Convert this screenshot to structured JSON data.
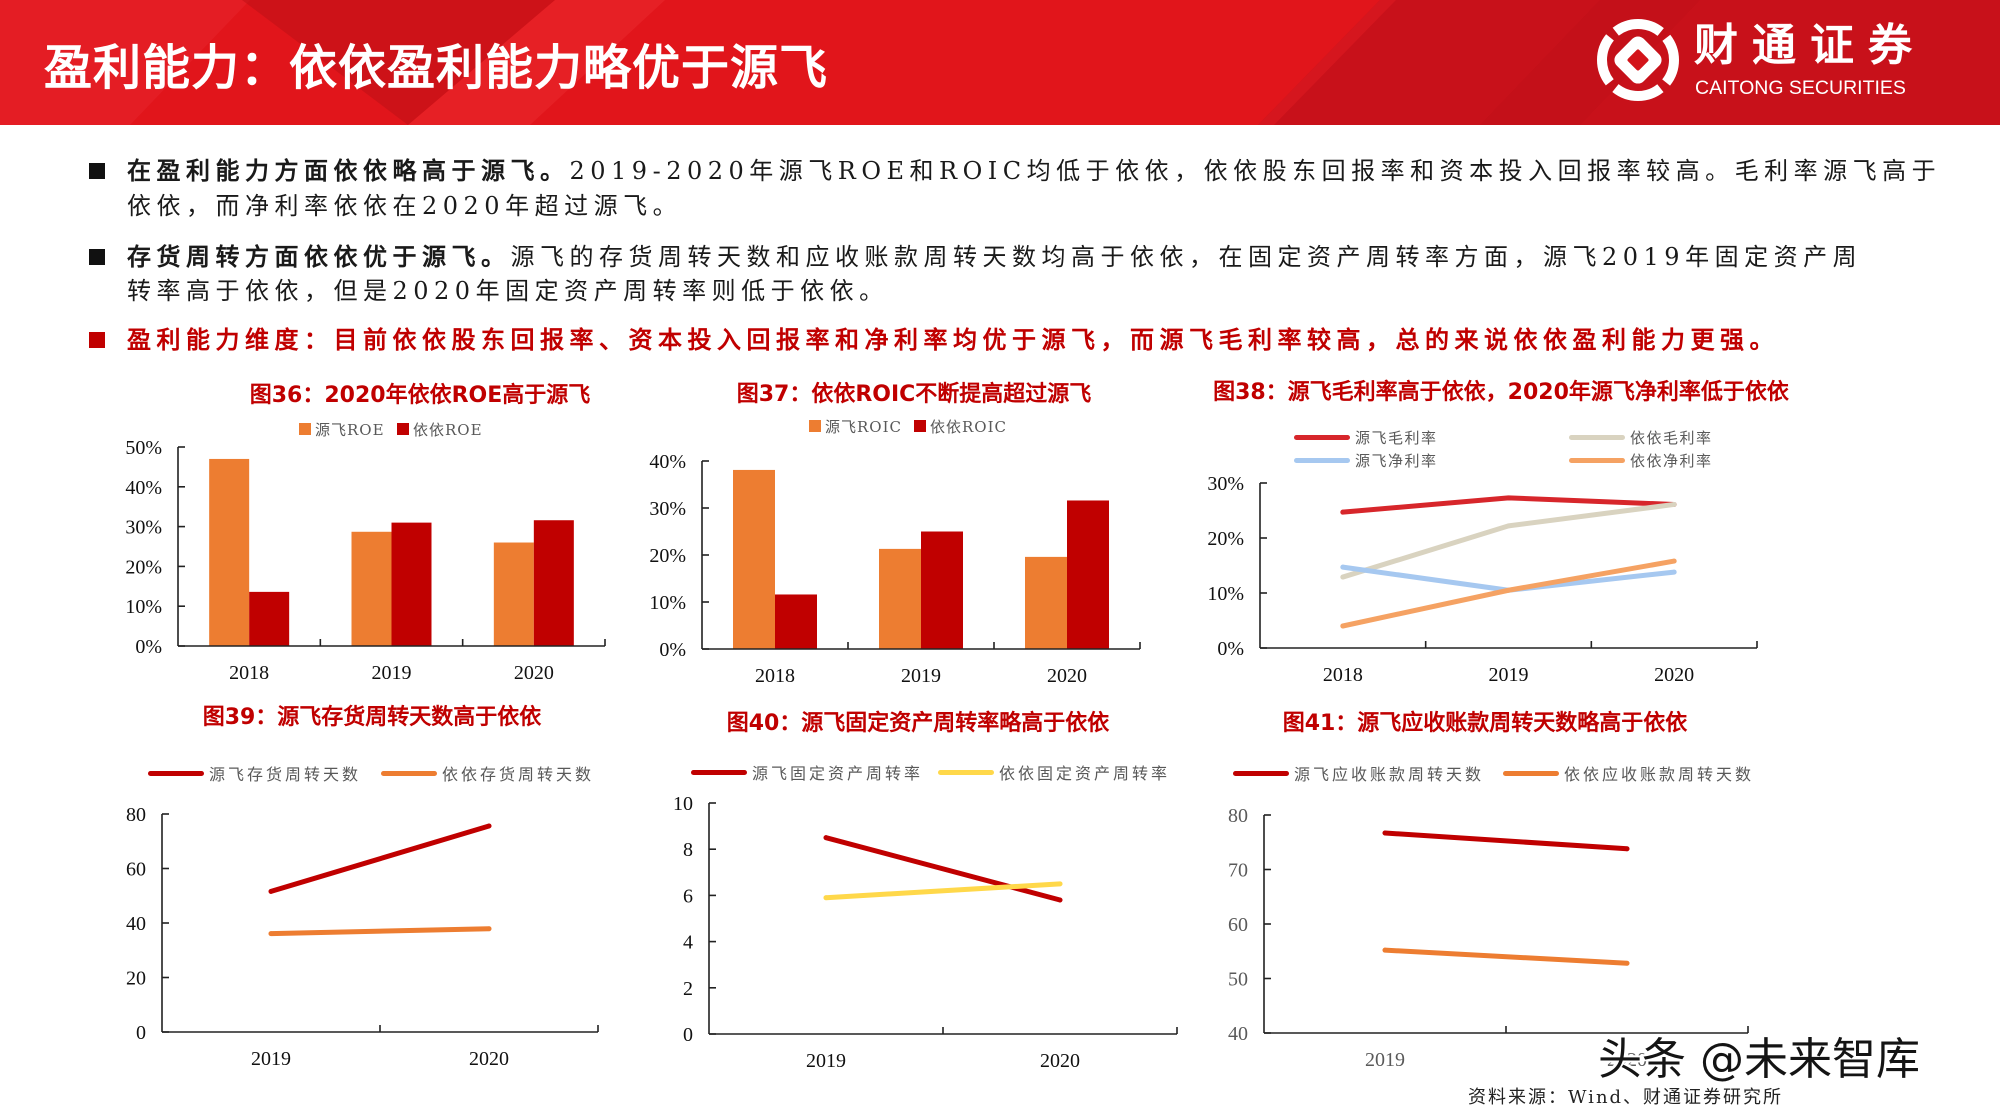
{
  "header": {
    "title": "盈利能力：依依盈利能力略优于源飞",
    "logo": {
      "icon": "caitong-emblem-icon",
      "name_cn": "财通证券",
      "name_en": "CAITONG SECURITIES"
    }
  },
  "colors": {
    "header_red": "#E1151B",
    "highlight_red": "#C00000",
    "chart_title_red": "#C00000"
  },
  "bullets": [
    {
      "icon": "square-bullet-icon",
      "lines": [
        {
          "bold": "在盈利能力方面依依略高于源飞。",
          "text": "2019-2020年源飞ROE和ROIC均低于依依，依依股东回报率和资本投入回报率较高。毛利率源飞高于"
        },
        {
          "bold": "",
          "text": "依依，而净利率依依在2020年超过源飞。"
        }
      ]
    },
    {
      "icon": "square-bullet-icon",
      "lines": [
        {
          "bold": "存货周转方面依依优于源飞。",
          "text": "源飞的存货周转天数和应收账款周转天数均高于依依，在固定资产周转率方面，源飞2019年固定资产周"
        },
        {
          "bold": "",
          "text": "转率高于依依，但是2020年固定资产周转率则低于依依。"
        }
      ]
    },
    {
      "icon": "square-bullet-icon",
      "lines": [
        {
          "bold": "盈利能力维度：目前依依股东回报率、资本投入回报率和净利率均优于源飞，而源飞毛利率较高，总的来说依依盈利能力更强。",
          "text": ""
        }
      ]
    }
  ],
  "chart_data": [
    {
      "type": "bar",
      "title": "图36：2020年依依ROE高于源飞",
      "categories": [
        "2018",
        "2019",
        "2020"
      ],
      "series": [
        {
          "name": "源飞ROE",
          "values": [
            47.0,
            28.7,
            26.0
          ],
          "color": "#ED7D31"
        },
        {
          "name": "依依ROE",
          "values": [
            13.6,
            31.0,
            31.6
          ],
          "color": "#C00000"
        }
      ],
      "ylim": [
        0,
        50
      ],
      "yticks": [
        0,
        10,
        20,
        30,
        40,
        50
      ],
      "y_tick_labels": [
        "0%",
        "10%",
        "20%",
        "30%",
        "40%",
        "50%"
      ],
      "unit": "%",
      "xlabel": "",
      "ylabel": "",
      "grid": false,
      "legend": "top-center"
    },
    {
      "type": "bar",
      "title": "图37：依依ROIC不断提高超过源飞",
      "categories": [
        "2018",
        "2019",
        "2020"
      ],
      "series": [
        {
          "name": "源飞ROIC",
          "values": [
            38.1,
            21.3,
            19.6
          ],
          "color": "#ED7D31"
        },
        {
          "name": "依依ROIC",
          "values": [
            11.6,
            25.0,
            31.6
          ],
          "color": "#C00000"
        }
      ],
      "ylim": [
        0,
        40
      ],
      "yticks": [
        0,
        10,
        20,
        30,
        40
      ],
      "y_tick_labels": [
        "0%",
        "10%",
        "20%",
        "30%",
        "40%"
      ],
      "unit": "%",
      "xlabel": "",
      "ylabel": "",
      "grid": false,
      "legend": "top-center"
    },
    {
      "type": "line",
      "title": "图38：源飞毛利率高于依依，2020年源飞净利率低于依依",
      "categories": [
        "2018",
        "2019",
        "2020"
      ],
      "series": [
        {
          "name": "源飞毛利率",
          "values": [
            24.7,
            27.3,
            26.1
          ],
          "color": "#D7262B"
        },
        {
          "name": "依依毛利率",
          "values": [
            12.9,
            22.2,
            26.1
          ],
          "color": "#D9D3C0"
        },
        {
          "name": "源飞净利率",
          "values": [
            14.7,
            10.5,
            13.8
          ],
          "color": "#A6C8F0"
        },
        {
          "name": "依依净利率",
          "values": [
            4.0,
            10.5,
            15.8
          ],
          "color": "#F5A263"
        }
      ],
      "ylim": [
        0,
        30
      ],
      "yticks": [
        0,
        10,
        20,
        30
      ],
      "y_tick_labels": [
        "0%",
        "10%",
        "20%",
        "30%"
      ],
      "unit": "%",
      "xlabel": "",
      "ylabel": "",
      "grid": false,
      "legend": "top (2 rows)"
    },
    {
      "type": "line",
      "title": "图39：源飞存货周转天数高于依依",
      "categories": [
        "2019",
        "2020"
      ],
      "series": [
        {
          "name": "源飞存货周转天数",
          "values": [
            51.6,
            75.6
          ],
          "color": "#C00000"
        },
        {
          "name": "依依存货周转天数",
          "values": [
            36.1,
            37.9
          ],
          "color": "#ED7D31"
        }
      ],
      "ylim": [
        0,
        80
      ],
      "yticks": [
        0,
        20,
        40,
        60,
        80
      ],
      "y_tick_labels": [
        "0",
        "20",
        "40",
        "60",
        "80"
      ],
      "unit": "天",
      "xlabel": "",
      "ylabel": "",
      "grid": false,
      "legend": "top"
    },
    {
      "type": "line",
      "title": "图40：源飞固定资产周转率略高于依依",
      "categories": [
        "2019",
        "2020"
      ],
      "series": [
        {
          "name": "源飞固定资产周转率",
          "values": [
            8.5,
            5.8
          ],
          "color": "#C00000"
        },
        {
          "name": "依依固定资产周转率",
          "values": [
            5.9,
            6.5
          ],
          "color": "#FFD84A"
        }
      ],
      "ylim": [
        0,
        10
      ],
      "yticks": [
        0,
        2,
        4,
        6,
        8,
        10
      ],
      "y_tick_labels": [
        "0",
        "2",
        "4",
        "6",
        "8",
        "10"
      ],
      "unit": "",
      "xlabel": "",
      "ylabel": "",
      "grid": false,
      "legend": "top"
    },
    {
      "type": "line",
      "title": "图41：源飞应收账款周转天数略高于依依",
      "categories": [
        "2019",
        "2020"
      ],
      "series": [
        {
          "name": "源飞应收账款周转天数",
          "values": [
            76.7,
            73.8
          ],
          "color": "#C00000"
        },
        {
          "name": "依依应收账款周转天数",
          "values": [
            55.2,
            52.8
          ],
          "color": "#ED7D31"
        }
      ],
      "ylim": [
        40,
        80
      ],
      "yticks": [
        40,
        50,
        60,
        70,
        80
      ],
      "y_tick_labels": [
        "40",
        "50",
        "60",
        "70",
        "80"
      ],
      "unit": "天",
      "xlabel": "",
      "ylabel": "",
      "grid": false,
      "legend": "top"
    }
  ],
  "footer": {
    "source": "资料来源：Wind、财通证券研究所",
    "watermark": "头条 @未来智库"
  }
}
